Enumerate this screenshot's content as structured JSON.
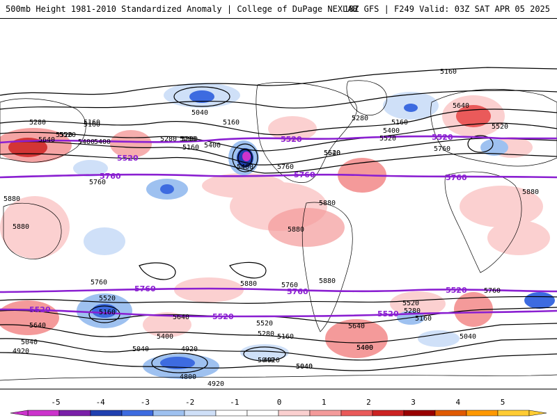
{
  "header": {
    "left_title": "500mb Height 1981-2010 Standardized Anomaly | College of DuPage NEXLAB",
    "right_title": "18Z GFS | F249 Valid: 03Z SAT APR 05 2025"
  },
  "colors": {
    "climo_contour": "#8a1fd1",
    "height_contour": "#000000",
    "coastline": "#000000",
    "background": "#ffffff"
  },
  "map_labels": {
    "height": [
      "5160",
      "5040",
      "5160",
      "5280",
      "5160",
      "5280",
      "5400",
      "5520",
      "5640",
      "5280",
      "5160",
      "5400",
      "5520",
      "5640",
      "5520",
      "5400",
      "5760",
      "5160",
      "5280",
      "5400",
      "5520",
      "5640",
      "5880",
      "5760",
      "5880",
      "5880",
      "5880",
      "5880",
      "5880",
      "5760",
      "5880",
      "5760",
      "5760",
      "5520",
      "5160",
      "5640",
      "5400",
      "5520",
      "5280",
      "5160",
      "5040",
      "5040",
      "4920",
      "4920",
      "5040",
      "4800",
      "4920",
      "5040",
      "5400",
      "5640",
      "5520",
      "5280",
      "5160",
      "5040",
      "4920",
      "5520",
      "5400",
      "5160",
      "5280",
      "5640",
      "5760",
      "5400",
      "5040"
    ],
    "climo": [
      "5520",
      "5520",
      "5520",
      "5760",
      "5760",
      "5760",
      "5760",
      "5760",
      "5520",
      "5520",
      "5520",
      "5520"
    ]
  },
  "colorbar": {
    "ticks": [
      "-5",
      "-4",
      "-3",
      "-2",
      "-1",
      "0",
      "1",
      "2",
      "3",
      "4",
      "5"
    ],
    "colors": [
      "#cc33cc",
      "#7a1fa8",
      "#1f3fb0",
      "#3d6be0",
      "#9ec1f0",
      "#cfe0f8",
      "#ffffff",
      "#ffffff",
      "#fbd0d0",
      "#f49a9a",
      "#ea5a5a",
      "#cc2222",
      "#990000",
      "#e05a00",
      "#ff9900",
      "#ffcc33"
    ]
  }
}
